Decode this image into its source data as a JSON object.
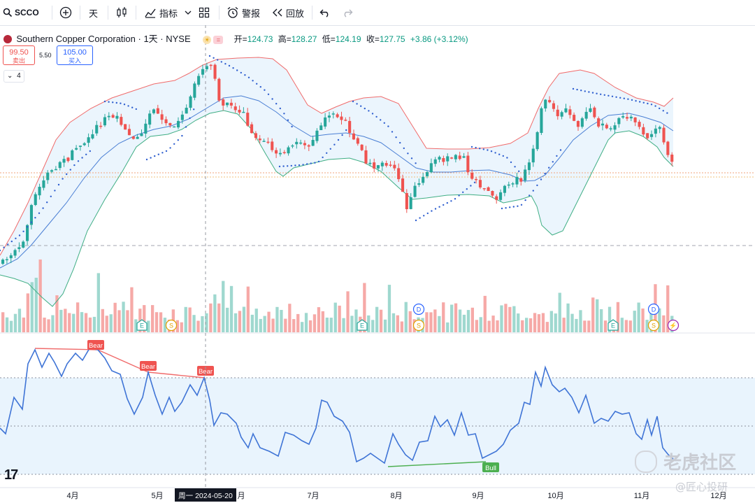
{
  "toolbar": {
    "symbol": "SCCO",
    "interval": "天",
    "indicators_label": "指标",
    "alert_label": "警报",
    "replay_label": "回放"
  },
  "legend": {
    "title": "Southern Copper Corporation · 1天 · NYSE",
    "open_label": "开=",
    "open": "124.73",
    "high_label": "高=",
    "high": "128.27",
    "low_label": "低=",
    "low": "124.19",
    "close_label": "收=",
    "close": "127.75",
    "change": "+3.86 (+3.12%)"
  },
  "trade": {
    "sell_price": "99.50",
    "sell_label": "卖出",
    "spread": "5.50",
    "buy_price": "105.00",
    "buy_label": "买入"
  },
  "collapse_count": "4",
  "axis": {
    "months": [
      {
        "label": "4月",
        "x": 104
      },
      {
        "label": "5月",
        "x": 225
      },
      {
        "label": "月",
        "x": 345
      },
      {
        "label": "7月",
        "x": 448
      },
      {
        "label": "8月",
        "x": 567
      },
      {
        "label": "9月",
        "x": 684
      },
      {
        "label": "10月",
        "x": 795
      },
      {
        "label": "11月",
        "x": 918
      },
      {
        "label": "12月",
        "x": 1028
      }
    ],
    "crosshair_date": "周一  2024-05-20"
  },
  "event_markers": [
    {
      "type": "E",
      "x": 203,
      "y": 465
    },
    {
      "type": "S",
      "x": 245,
      "y": 465
    },
    {
      "type": "E",
      "x": 518,
      "y": 465
    },
    {
      "type": "D",
      "x": 599,
      "y": 442
    },
    {
      "type": "S",
      "x": 599,
      "y": 465
    },
    {
      "type": "E",
      "x": 877,
      "y": 465
    },
    {
      "type": "D",
      "x": 935,
      "y": 442
    },
    {
      "type": "S",
      "x": 935,
      "y": 465
    },
    {
      "type": "bolt",
      "x": 963,
      "y": 465
    }
  ],
  "divergence_labels": [
    {
      "text": "Bear",
      "x": 137,
      "y": 493
    },
    {
      "text": "Bear",
      "x": 212,
      "y": 523
    },
    {
      "text": "Bear",
      "x": 294,
      "y": 530
    },
    {
      "text": "Bull",
      "x": 702,
      "y": 668
    }
  ],
  "watermarks": {
    "brand": "老虎社区",
    "author": "@匠心投研"
  },
  "colors": {
    "up": "#26a69a",
    "down": "#ef5350",
    "upper_band": "#f06b6b",
    "lower_band": "#3fae84",
    "basis": "#4a7fd4",
    "rsi": "#3f74d6"
  }
}
